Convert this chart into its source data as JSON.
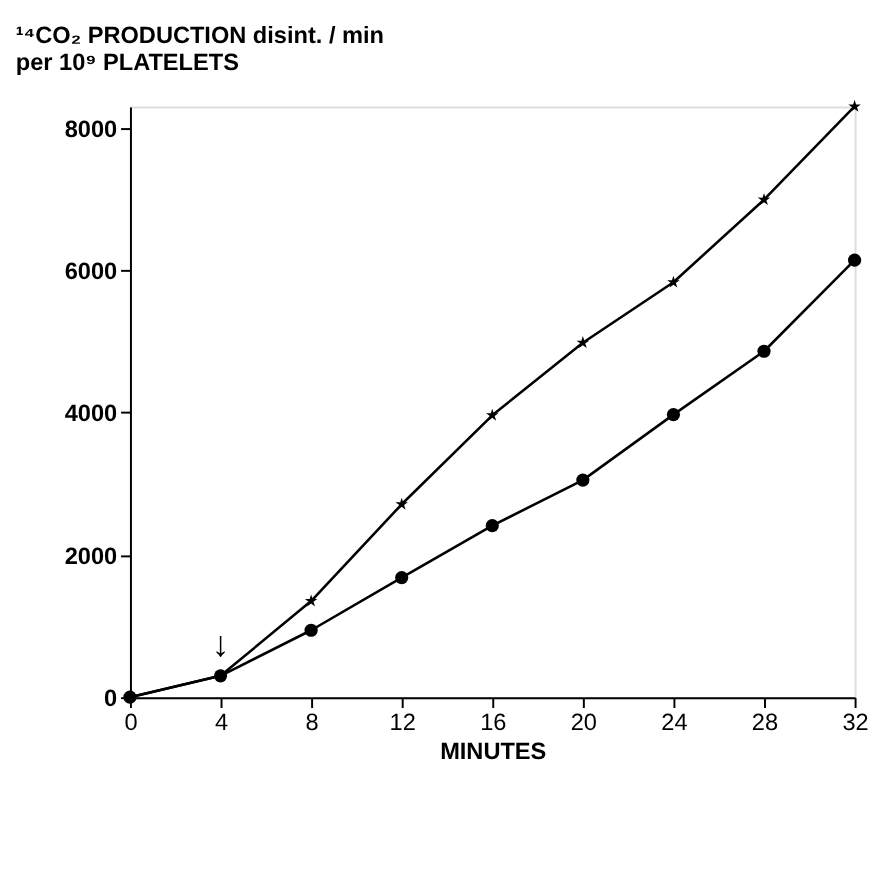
{
  "chart_data": {
    "type": "line",
    "ylabel": "¹⁴CO₂ PRODUCTION  disint. / min\nper 10⁹ PLATELETS",
    "xlabel": "MINUTES",
    "x": [
      0,
      4,
      8,
      12,
      16,
      20,
      24,
      28,
      32
    ],
    "series": [
      {
        "color": "#000000",
        "marker": "star",
        "values": [
          0,
          300,
          1350,
          2710,
          3960,
          4980,
          5830,
          6990,
          8300
        ]
      },
      {
        "color": "#000000",
        "marker": "circle",
        "values": [
          0,
          300,
          940,
          1680,
          2410,
          3050,
          3970,
          4860,
          6140
        ]
      }
    ],
    "xlim": [
      0,
      32
    ],
    "xticks": [
      0,
      4,
      8,
      12,
      16,
      20,
      24,
      28,
      32
    ],
    "ylim": [
      0,
      8300
    ],
    "yticks": [
      0,
      2000,
      4000,
      6000,
      8000
    ],
    "annotations": [
      "↓"
    ],
    "grid": false,
    "line_style": "solid"
  }
}
